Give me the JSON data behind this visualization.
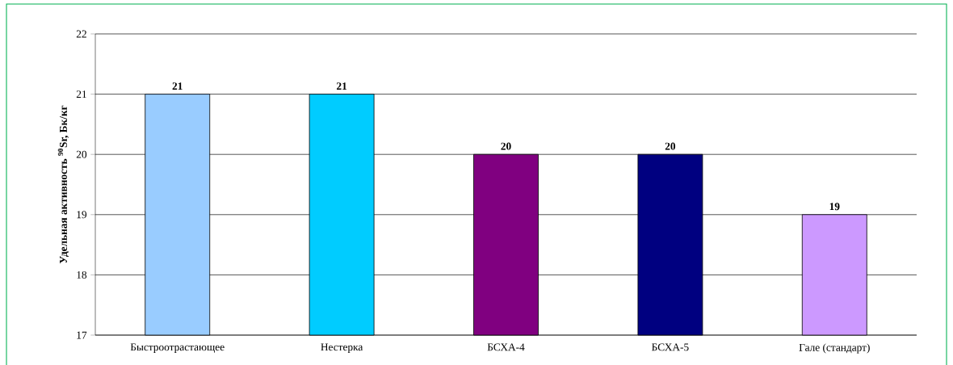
{
  "chart_data": {
    "type": "bar",
    "ylabel": "Удельная активность $^{90}$Sr, Бк/кг",
    "categories": [
      "Быстроотрастающее",
      "Нестерка",
      "БСХА-4",
      "БСХА-5",
      "Гале (стандарт)"
    ],
    "values": [
      21,
      21,
      20,
      20,
      19
    ],
    "colors": [
      "#99ccff",
      "#00ccff",
      "#800080",
      "#000080",
      "#cc99ff"
    ],
    "ylim": [
      17,
      22
    ],
    "yticks": [
      17,
      18,
      19,
      20,
      21,
      22
    ],
    "grid": "y",
    "data_labels": true
  }
}
